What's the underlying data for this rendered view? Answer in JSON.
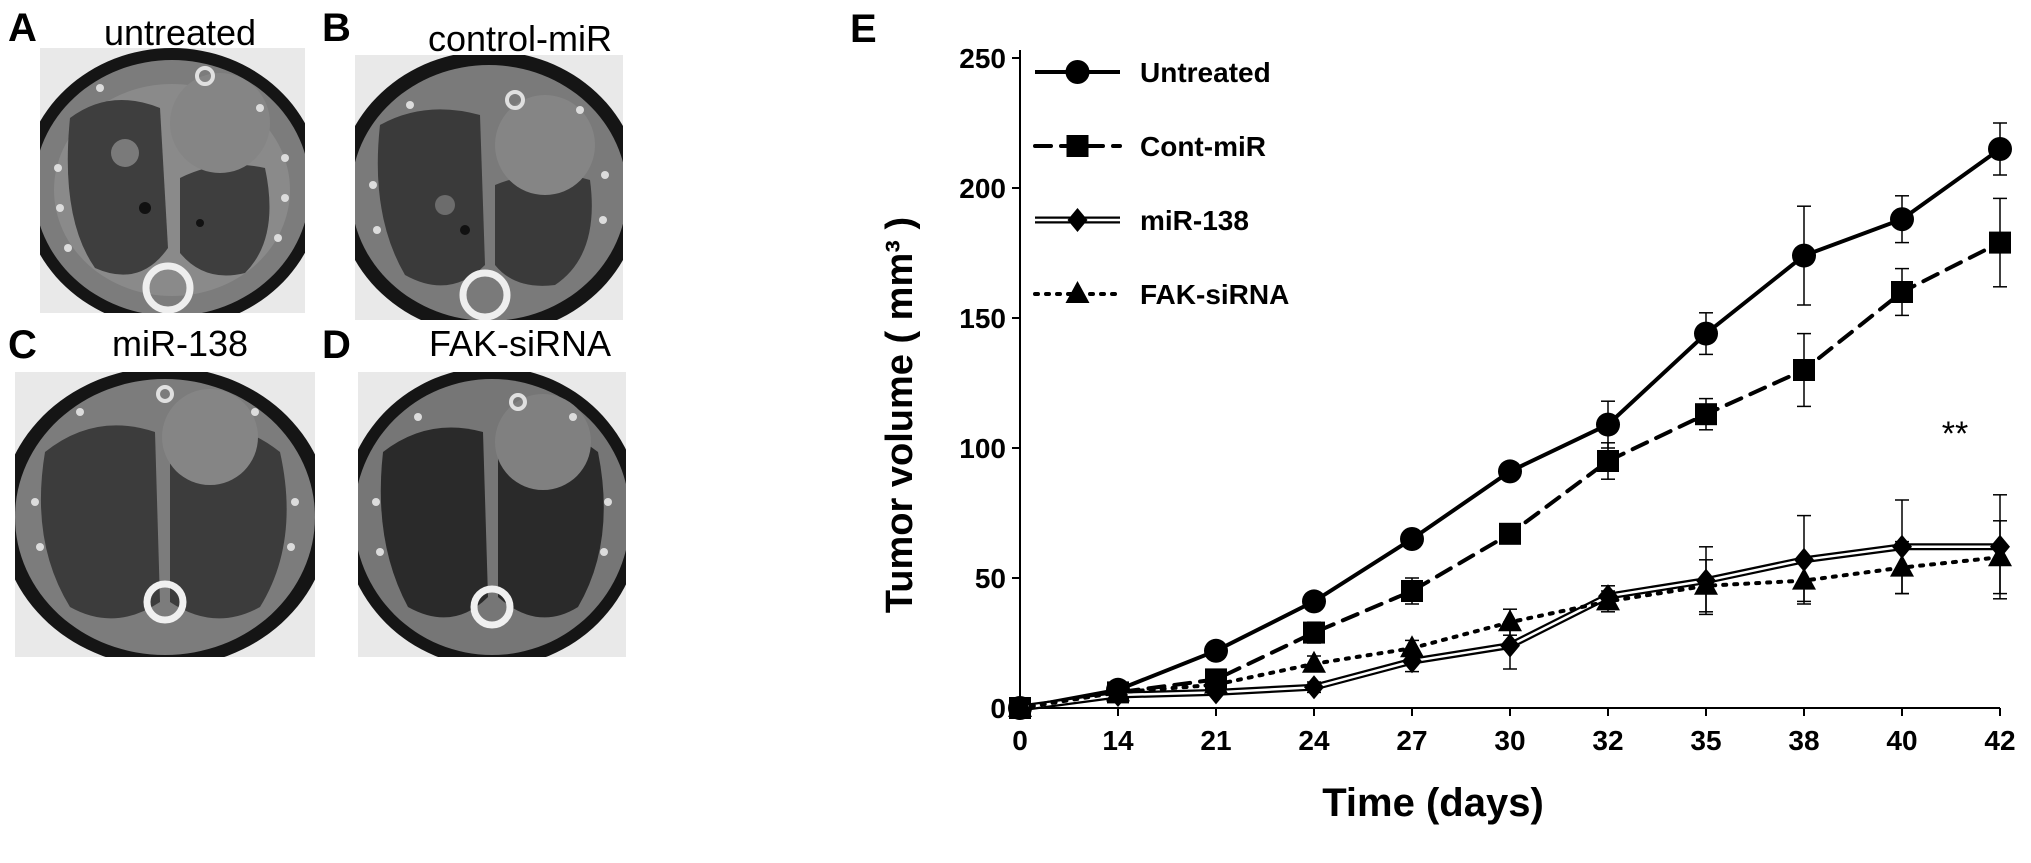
{
  "panels": [
    {
      "letter": "A",
      "caption": "untreated"
    },
    {
      "letter": "B",
      "caption": "control-miR"
    },
    {
      "letter": "C",
      "caption": "miR-138"
    },
    {
      "letter": "D",
      "caption": "FAK-siRNA"
    }
  ],
  "chart_panel_letter": "E",
  "significance_marker": "**",
  "chart_data": {
    "type": "line",
    "title": "",
    "xlabel": "Time (days)",
    "ylabel": "Tumor volume ( mm³ )",
    "categories": [
      "0",
      "14",
      "21",
      "24",
      "27",
      "30",
      "32",
      "35",
      "38",
      "40",
      "42"
    ],
    "ylim": [
      0,
      250
    ],
    "yticks": [
      "0",
      "50",
      "100",
      "150",
      "200",
      "250"
    ],
    "grid": false,
    "legend_position": "top-left",
    "series": [
      {
        "name": "Untreated",
        "marker": "circle",
        "line": "solid",
        "values": [
          0,
          7,
          22,
          41,
          65,
          91,
          109,
          144,
          174,
          188,
          215
        ],
        "errors": [
          0,
          1,
          2,
          3,
          3,
          3,
          9,
          8,
          19,
          9,
          10
        ]
      },
      {
        "name": "Cont-miR",
        "marker": "square",
        "line": "dashed",
        "values": [
          0,
          6,
          11,
          29,
          45,
          67,
          95,
          113,
          130,
          160,
          179
        ],
        "errors": [
          0,
          1,
          2,
          4,
          5,
          3,
          7,
          6,
          14,
          9,
          17
        ]
      },
      {
        "name": "miR-138",
        "marker": "diamond",
        "line": "double",
        "values": [
          0,
          5,
          6,
          8,
          18,
          24,
          43,
          49,
          57,
          62,
          62
        ],
        "errors": [
          0,
          1,
          1,
          2,
          4,
          9,
          4,
          13,
          17,
          18,
          20
        ]
      },
      {
        "name": "FAK-siRNA",
        "marker": "triangle",
        "line": "dotted",
        "values": [
          0,
          6,
          9,
          17,
          23,
          33,
          41,
          47,
          49,
          54,
          58
        ],
        "errors": [
          0,
          1,
          2,
          3,
          3,
          5,
          4,
          10,
          8,
          10,
          14
        ]
      }
    ]
  }
}
